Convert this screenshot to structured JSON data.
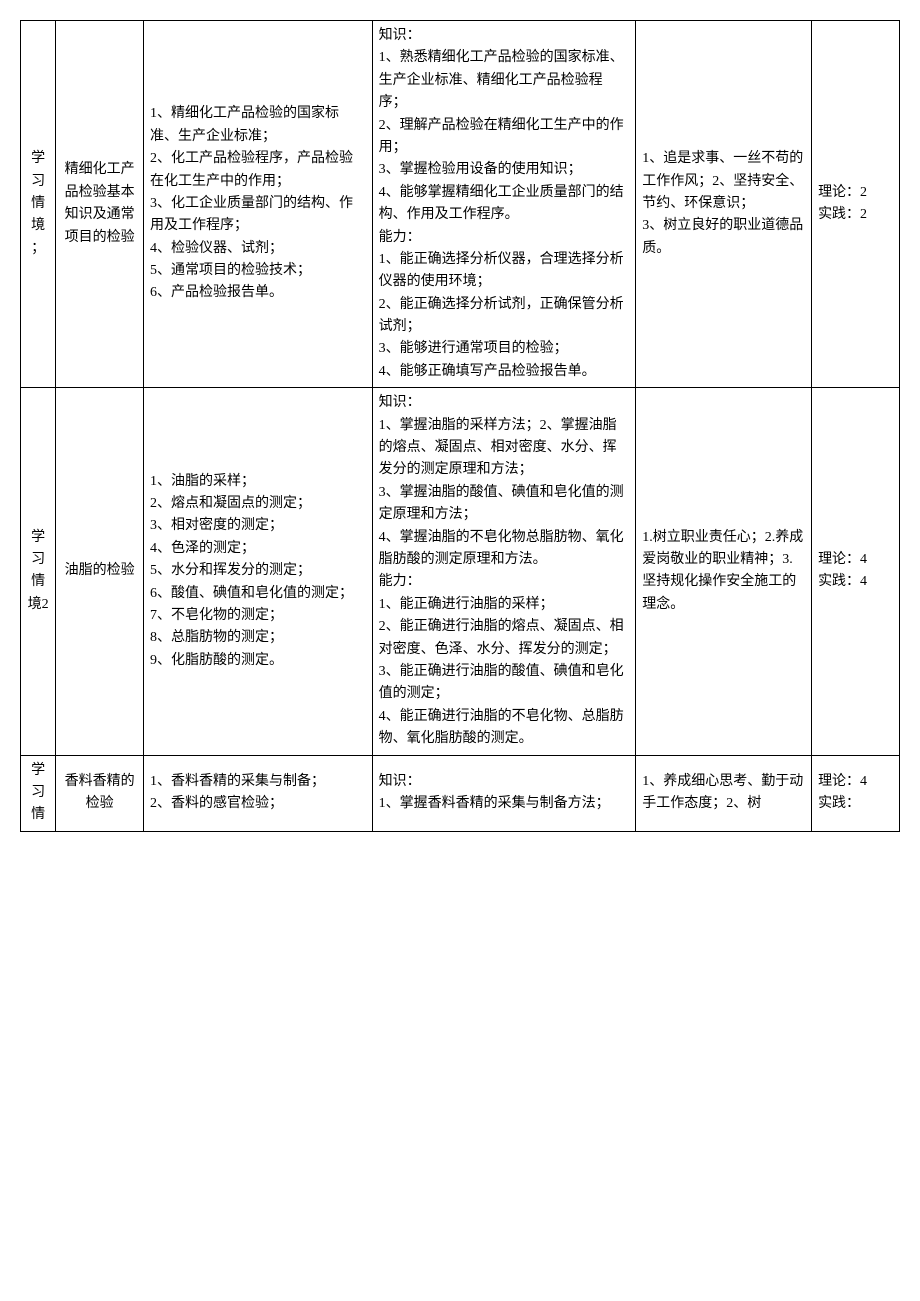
{
  "table": {
    "rows": [
      {
        "section": "学习情境；",
        "title": "精细化工产品检验基本知识及通常项目的检验",
        "content": "1、精细化工产品检验的国家标准、生产企业标准；\n2、化工产品检验程序，产品检验在化工生产中的作用；\n3、化工企业质量部门的结构、作用及工作程序；\n4、检验仪器、试剂；\n5、通常项目的检验技术；\n6、产品检验报告单。",
        "knowledge": "知识：\n1、熟悉精细化工产品检验的国家标准、生产企业标准、精细化工产品检验程序；\n2、理解产品检验在精细化工生产中的作用；\n3、掌握检验用设备的使用知识；\n4、能够掌握精细化工企业质量部门的结构、作用及工作程序。\n能力：\n1、能正确选择分析仪器，合理选择分析仪器的使用环境；\n2、能正确选择分析试剂，正确保管分析试剂；\n3、能够进行通常项目的检验；\n4、能够正确填写产品检验报告单。",
        "quality": "1、追是求事、一丝不苟的工作作风；2、坚持安全、节约、环保意识；\n3、树立良好的职业道德品质。",
        "hours": "理论：2\n实践：2"
      },
      {
        "section": "学习情境2",
        "title": "油脂的检验",
        "content": "1、油脂的采样；\n2、熔点和凝固点的测定；\n3、相对密度的测定；\n4、色泽的测定；\n5、水分和挥发分的测定；\n6、酸值、碘值和皂化值的测定；\n7、不皂化物的测定；\n8、总脂肪物的测定；\n9、化脂肪酸的测定。",
        "knowledge": "知识：\n1、掌握油脂的采样方法；2、掌握油脂的熔点、凝固点、相对密度、水分、挥发分的测定原理和方法；\n3、掌握油脂的酸值、碘值和皂化值的测定原理和方法；\n4、掌握油脂的不皂化物总脂肪物、氧化脂肪酸的测定原理和方法。\n能力：\n1、能正确进行油脂的采样；\n2、能正确进行油脂的熔点、凝固点、相对密度、色泽、水分、挥发分的测定；\n3、能正确进行油脂的酸值、碘值和皂化值的测定；\n4、能正确进行油脂的不皂化物、总脂肪物、氧化脂肪酸的测定。",
        "quality": "1.树立职业责任心；2.养成爱岗敬业的职业精神；3.坚持规化操作安全施工的理念。",
        "hours": "理论：4\n实践：4"
      },
      {
        "section": "学习情",
        "title": "香料香精的检验",
        "content": "1、香料香精的采集与制备；\n2、香料的感官检验；",
        "knowledge": "知识：\n1、掌握香料香精的采集与制备方法；",
        "quality": "1、养成细心思考、勤于动手工作态度；2、树",
        "hours": "理论：4\n实践："
      }
    ]
  }
}
